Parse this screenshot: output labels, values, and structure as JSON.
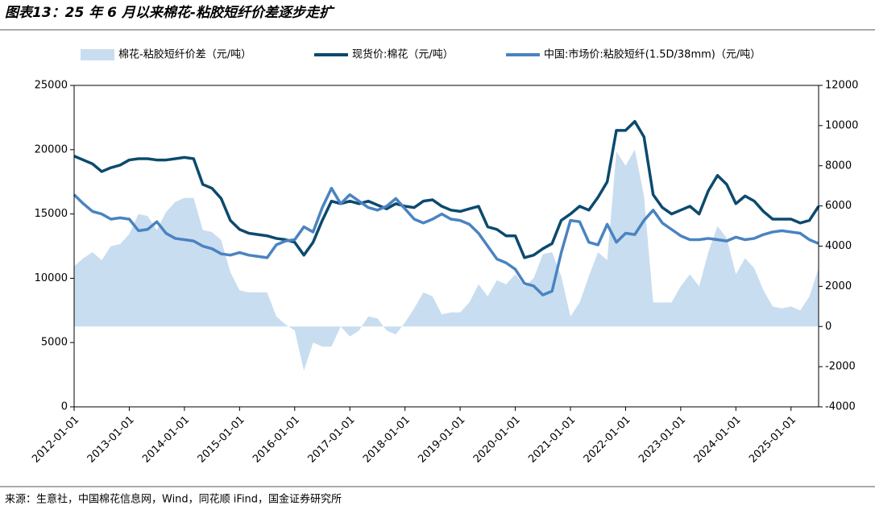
{
  "chart_data": {
    "type": "line",
    "title": "图表13：25 年 6 月以来棉花-粘胶短纤价差逐步走扩",
    "source": "来源：生意社，中国棉花信息网，Wind，同花顺 iFind，国金证券研究所",
    "x": [
      "2012-01-01",
      "2012-03-01",
      "2012-05-01",
      "2012-07-01",
      "2012-09-01",
      "2012-11-01",
      "2013-01-01",
      "2013-03-01",
      "2013-05-01",
      "2013-07-01",
      "2013-09-01",
      "2013-11-01",
      "2014-01-01",
      "2014-03-01",
      "2014-05-01",
      "2014-07-01",
      "2014-09-01",
      "2014-11-01",
      "2015-01-01",
      "2015-03-01",
      "2015-05-01",
      "2015-07-01",
      "2015-09-01",
      "2015-11-01",
      "2016-01-01",
      "2016-03-01",
      "2016-05-01",
      "2016-07-01",
      "2016-09-01",
      "2016-11-01",
      "2017-01-01",
      "2017-03-01",
      "2017-05-01",
      "2017-07-01",
      "2017-09-01",
      "2017-11-01",
      "2018-01-01",
      "2018-03-01",
      "2018-05-01",
      "2018-07-01",
      "2018-09-01",
      "2018-11-01",
      "2019-01-01",
      "2019-03-01",
      "2019-05-01",
      "2019-07-01",
      "2019-09-01",
      "2019-11-01",
      "2020-01-01",
      "2020-03-01",
      "2020-05-01",
      "2020-07-01",
      "2020-09-01",
      "2020-11-01",
      "2021-01-01",
      "2021-03-01",
      "2021-05-01",
      "2021-07-01",
      "2021-09-01",
      "2021-11-01",
      "2022-01-01",
      "2022-03-01",
      "2022-05-01",
      "2022-07-01",
      "2022-09-01",
      "2022-11-01",
      "2023-01-01",
      "2023-03-01",
      "2023-05-01",
      "2023-07-01",
      "2023-09-01",
      "2023-11-01",
      "2024-01-01",
      "2024-03-01",
      "2024-05-01",
      "2024-07-01",
      "2024-09-01",
      "2024-11-01",
      "2025-01-01",
      "2025-03-01",
      "2025-05-01",
      "2025-07-01"
    ],
    "series": [
      {
        "name": "棉花-粘胶短纤价差（元/吨）",
        "kind": "area",
        "axis": "y2",
        "color": "#c9ddf0",
        "values": [
          3000,
          3400,
          3700,
          3300,
          4000,
          4100,
          4600,
          5600,
          5500,
          4800,
          5700,
          6200,
          6400,
          6400,
          4800,
          4700,
          4300,
          2700,
          1800,
          1700,
          1700,
          1700,
          500,
          100,
          -200,
          -2200,
          -800,
          -1000,
          -1000,
          0,
          -500,
          -200,
          500,
          400,
          -200,
          -400,
          200,
          900,
          1700,
          1500,
          600,
          700,
          700,
          1200,
          2100,
          1500,
          2300,
          2100,
          2600,
          2000,
          2400,
          3600,
          3700,
          2500,
          500,
          1200,
          2500,
          3700,
          3300,
          8700,
          8000,
          8800,
          6500,
          1200,
          1200,
          1200,
          2000,
          2600,
          2000,
          3700,
          5000,
          4400,
          2600,
          3400,
          2900,
          1800,
          1000,
          900,
          1000,
          800,
          1500,
          2900
        ]
      },
      {
        "name": "现货价:棉花（元/吨）",
        "kind": "line",
        "axis": "y",
        "color": "#0c4a6e",
        "values": [
          19500,
          19200,
          18900,
          18300,
          18600,
          18800,
          19200,
          19300,
          19300,
          19200,
          19200,
          19300,
          19400,
          19300,
          17300,
          17000,
          16200,
          14500,
          13800,
          13500,
          13400,
          13300,
          13100,
          13000,
          12800,
          11800,
          12800,
          14500,
          16000,
          15800,
          16000,
          15800,
          16000,
          15700,
          15400,
          15800,
          15600,
          15500,
          16000,
          16100,
          15600,
          15300,
          15200,
          15400,
          15600,
          14000,
          13800,
          13300,
          13300,
          11600,
          11800,
          12300,
          12700,
          14500,
          15000,
          15600,
          15300,
          16300,
          17500,
          21500,
          21500,
          22200,
          21000,
          16500,
          15500,
          15000,
          15300,
          15600,
          15000,
          16800,
          18000,
          17300,
          15800,
          16400,
          16000,
          15200,
          14600,
          14600,
          14600,
          14300,
          14500,
          15600
        ]
      },
      {
        "name": "中国:市场价:粘胶短纤(1.5D/38mm)（元/吨）",
        "kind": "line",
        "axis": "y",
        "color": "#4a83c1",
        "values": [
          16500,
          15800,
          15200,
          15000,
          14600,
          14700,
          14600,
          13700,
          13800,
          14400,
          13500,
          13100,
          13000,
          12900,
          12500,
          12300,
          11900,
          11800,
          12000,
          11800,
          11700,
          11600,
          12600,
          12900,
          13000,
          14000,
          13600,
          15500,
          17000,
          15800,
          16500,
          16000,
          15500,
          15300,
          15600,
          16200,
          15400,
          14600,
          14300,
          14600,
          15000,
          14600,
          14500,
          14200,
          13500,
          12500,
          11500,
          11200,
          10700,
          9600,
          9400,
          8700,
          9000,
          12000,
          14500,
          14400,
          12800,
          12600,
          14200,
          12800,
          13500,
          13400,
          14500,
          15300,
          14300,
          13800,
          13300,
          13000,
          13000,
          13100,
          13000,
          12900,
          13200,
          13000,
          13100,
          13400,
          13600,
          13700,
          13600,
          13500,
          13000,
          12700
        ]
      }
    ],
    "xlim": [
      "2012-01-01",
      "2025-07-01"
    ],
    "xticks": [
      "2012-01-01",
      "2013-01-01",
      "2014-01-01",
      "2015-01-01",
      "2016-01-01",
      "2017-01-01",
      "2018-01-01",
      "2019-01-01",
      "2020-01-01",
      "2021-01-01",
      "2022-01-01",
      "2023-01-01",
      "2024-01-01",
      "2025-01-01"
    ],
    "ylim": [
      0,
      25000
    ],
    "yticks": [
      0,
      5000,
      10000,
      15000,
      20000,
      25000
    ],
    "y2lim": [
      -4000,
      12000
    ],
    "y2ticks": [
      -4000,
      -2000,
      0,
      2000,
      4000,
      6000,
      8000,
      10000,
      12000
    ]
  }
}
